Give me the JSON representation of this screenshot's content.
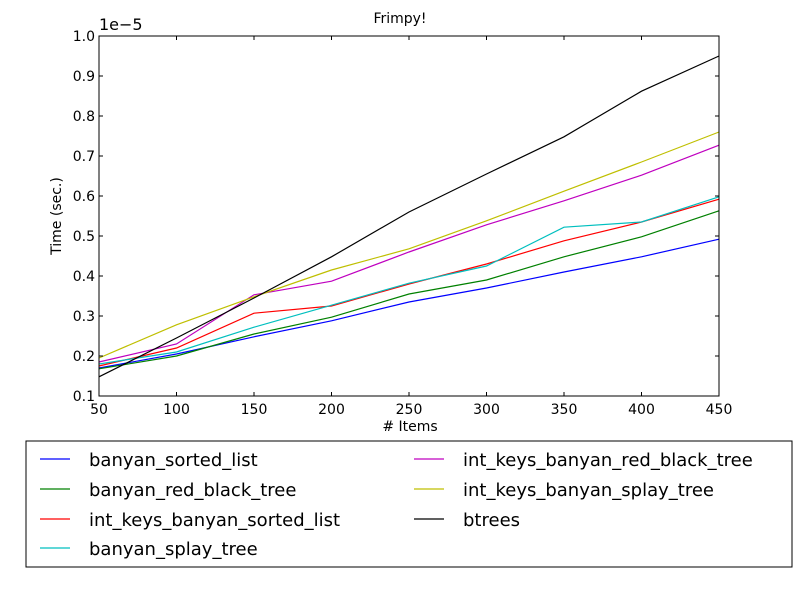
{
  "chart_data": {
    "type": "line",
    "title": "Frimpy!",
    "xlabel": "# Items",
    "ylabel": "Time (sec.)",
    "y_offset_label": "1e−5",
    "xlim": [
      50,
      450
    ],
    "ylim": [
      0.1,
      1.0
    ],
    "y_scale_note": "1e-5",
    "x": [
      50,
      100,
      150,
      200,
      250,
      300,
      350,
      400,
      450
    ],
    "xticks": [
      "50",
      "100",
      "150",
      "200",
      "250",
      "300",
      "350",
      "400",
      "450"
    ],
    "yticks": [
      "0.1",
      "0.2",
      "0.3",
      "0.4",
      "0.5",
      "0.6",
      "0.7",
      "0.8",
      "0.9",
      "1.0"
    ],
    "ytick_values": [
      0.1,
      0.2,
      0.3,
      0.4,
      0.5,
      0.6,
      0.7,
      0.8,
      0.9,
      1.0
    ],
    "grid": false,
    "legend_position": "bottom",
    "series": [
      {
        "name": "banyan_sorted_list",
        "color": "#0000ff",
        "values": [
          0.17,
          0.205,
          0.248,
          0.288,
          0.335,
          0.37,
          0.41,
          0.448,
          0.492
        ]
      },
      {
        "name": "banyan_red_black_tree",
        "color": "#008000",
        "values": [
          0.168,
          0.2,
          0.255,
          0.297,
          0.355,
          0.39,
          0.448,
          0.498,
          0.563
        ]
      },
      {
        "name": "int_keys_banyan_sorted_list",
        "color": "#ff0000",
        "values": [
          0.175,
          0.22,
          0.307,
          0.325,
          0.38,
          0.43,
          0.488,
          0.535,
          0.592
        ]
      },
      {
        "name": "banyan_splay_tree",
        "color": "#00bfbf",
        "values": [
          0.18,
          0.21,
          0.272,
          0.327,
          0.382,
          0.425,
          0.522,
          0.535,
          0.598
        ]
      },
      {
        "name": "int_keys_banyan_red_black_tree",
        "color": "#bf00bf",
        "values": [
          0.185,
          0.23,
          0.353,
          0.387,
          0.46,
          0.528,
          0.588,
          0.652,
          0.727
        ]
      },
      {
        "name": "int_keys_banyan_splay_tree",
        "color": "#bfbf00",
        "values": [
          0.195,
          0.278,
          0.348,
          0.415,
          0.468,
          0.538,
          0.612,
          0.685,
          0.76
        ]
      },
      {
        "name": "btrees",
        "color": "#000000",
        "values": [
          0.148,
          0.245,
          0.345,
          0.448,
          0.56,
          0.655,
          0.748,
          0.862,
          0.95
        ]
      }
    ]
  }
}
